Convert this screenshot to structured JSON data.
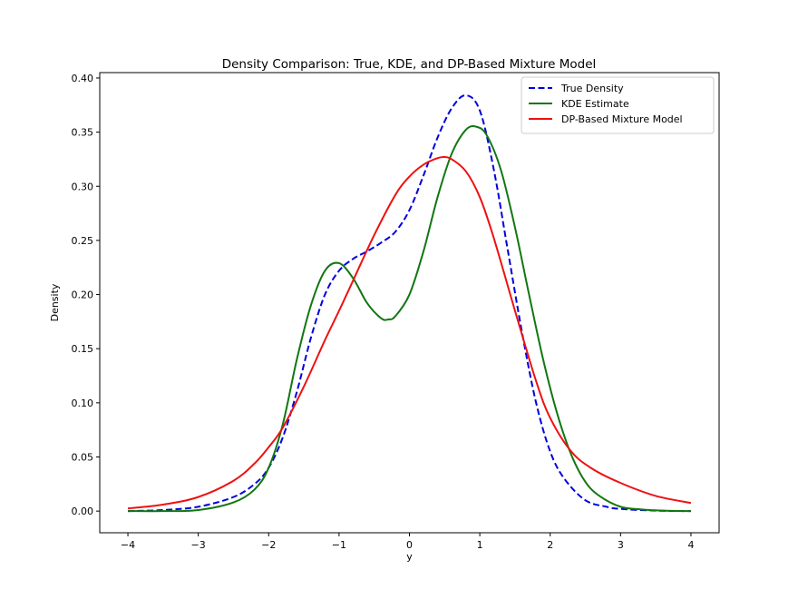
{
  "chart_data": {
    "type": "line",
    "title": "Density Comparison: True, KDE, and DP-Based Mixture Model",
    "xlabel": "y",
    "ylabel": "Density",
    "xlim": [
      -4.4,
      4.4
    ],
    "ylim": [
      -0.02,
      0.405
    ],
    "xticks": [
      -4,
      -3,
      -2,
      -1,
      0,
      1,
      2,
      3,
      4
    ],
    "xtick_labels": [
      "−4",
      "−3",
      "−2",
      "−1",
      "0",
      "1",
      "2",
      "3",
      "4"
    ],
    "yticks": [
      0.0,
      0.05,
      0.1,
      0.15,
      0.2,
      0.25,
      0.3,
      0.35,
      0.4
    ],
    "ytick_labels": [
      "0.00",
      "0.05",
      "0.10",
      "0.15",
      "0.20",
      "0.25",
      "0.30",
      "0.35",
      "0.40"
    ],
    "grid": false,
    "legend_position": "top-right",
    "series": [
      {
        "name": "True Density",
        "color": "#0000dd",
        "style": "dashed",
        "x": [
          -4,
          -3.5,
          -3,
          -2.5,
          -2.2,
          -2,
          -1.8,
          -1.6,
          -1.4,
          -1.2,
          -1.0,
          -0.8,
          -0.6,
          -0.4,
          -0.2,
          0,
          0.2,
          0.4,
          0.6,
          0.8,
          1.0,
          1.2,
          1.4,
          1.6,
          1.8,
          2.0,
          2.2,
          2.5,
          2.8,
          3.0,
          3.5,
          4
        ],
        "y": [
          0.0,
          0.001,
          0.004,
          0.013,
          0.025,
          0.04,
          0.068,
          0.11,
          0.16,
          0.2,
          0.222,
          0.233,
          0.24,
          0.248,
          0.258,
          0.278,
          0.31,
          0.345,
          0.372,
          0.384,
          0.37,
          0.315,
          0.24,
          0.165,
          0.1,
          0.055,
          0.03,
          0.01,
          0.004,
          0.002,
          0.0004,
          0.0
        ]
      },
      {
        "name": "KDE Estimate",
        "color": "#117711",
        "style": "solid",
        "x": [
          -4,
          -3.5,
          -3,
          -2.5,
          -2.2,
          -2.0,
          -1.8,
          -1.6,
          -1.4,
          -1.2,
          -1.0,
          -0.8,
          -0.6,
          -0.4,
          -0.3,
          -0.2,
          0,
          0.2,
          0.4,
          0.6,
          0.8,
          0.95,
          1.1,
          1.3,
          1.5,
          1.7,
          1.9,
          2.1,
          2.3,
          2.5,
          2.7,
          3.0,
          3.3,
          3.6,
          4
        ],
        "y": [
          0.0,
          0.0,
          0.001,
          0.008,
          0.02,
          0.04,
          0.08,
          0.14,
          0.19,
          0.222,
          0.229,
          0.215,
          0.192,
          0.178,
          0.177,
          0.18,
          0.2,
          0.24,
          0.29,
          0.33,
          0.352,
          0.355,
          0.347,
          0.315,
          0.262,
          0.2,
          0.14,
          0.09,
          0.052,
          0.027,
          0.014,
          0.004,
          0.0015,
          0.0004,
          0.0
        ]
      },
      {
        "name": "DP-Based Mixture Model",
        "color": "#ee1111",
        "style": "solid",
        "x": [
          -4,
          -3.5,
          -3,
          -2.5,
          -2.2,
          -2.0,
          -1.8,
          -1.5,
          -1.2,
          -1.0,
          -0.8,
          -0.5,
          -0.2,
          0,
          0.2,
          0.4,
          0.5,
          0.6,
          0.8,
          1.0,
          1.2,
          1.5,
          1.8,
          2.0,
          2.3,
          2.6,
          3.0,
          3.5,
          4
        ],
        "y": [
          0.0025,
          0.006,
          0.013,
          0.028,
          0.044,
          0.059,
          0.077,
          0.115,
          0.158,
          0.185,
          0.213,
          0.255,
          0.292,
          0.309,
          0.32,
          0.326,
          0.327,
          0.325,
          0.314,
          0.29,
          0.252,
          0.185,
          0.12,
          0.086,
          0.055,
          0.039,
          0.026,
          0.014,
          0.0075
        ]
      }
    ]
  }
}
